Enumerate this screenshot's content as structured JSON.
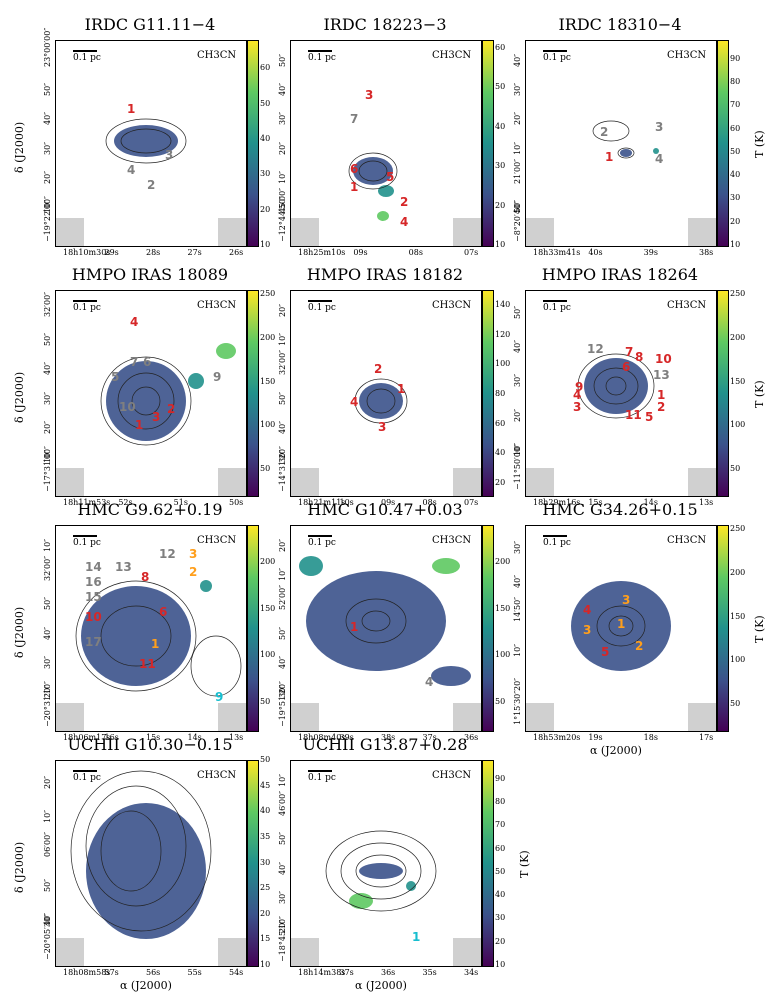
{
  "colors": {
    "red": "#d62728",
    "gray": "#7f7f7f",
    "orange": "#ff9f1c",
    "cyan": "#17becf",
    "green": "#2ca02c"
  },
  "colormap": [
    "#440154",
    "#3b528b",
    "#21918c",
    "#5ec962",
    "#fde725"
  ],
  "units": {
    "dec_label": "δ (J2000)",
    "ra_label": "α (J2000)",
    "cbar_label": "T (K)"
  },
  "panels": [
    {
      "title": "IRDC G11.11−4",
      "molecule": "CH3CN",
      "scalebar": "0.1 pc",
      "dec_ticks": [
        "−19°22′00″",
        "10″",
        "20″",
        "30″",
        "40″",
        "50″",
        "23°00′00″"
      ],
      "ra_ticks": [
        "18h10m30s",
        "29s",
        "28s",
        "27s",
        "26s"
      ],
      "cbar_ticks": [
        "10",
        "20",
        "30",
        "40",
        "50",
        "60"
      ],
      "cbar_range": [
        10,
        68
      ],
      "labels": [
        {
          "t": "1",
          "c": "red"
        },
        {
          "t": "3",
          "c": "gray"
        },
        {
          "t": "4",
          "c": "gray"
        },
        {
          "t": "2",
          "c": "gray"
        }
      ]
    },
    {
      "title": "IRDC 18223−3",
      "molecule": "CH3CN",
      "scalebar": "0.1 pc",
      "dec_ticks": [
        "−12°44′50″",
        "45′00″",
        "10″",
        "20″",
        "30″",
        "40″",
        "50″"
      ],
      "ra_ticks": [
        "18h25m10s",
        "09s",
        "08s",
        "07s"
      ],
      "cbar_ticks": [
        "10",
        "20",
        "30",
        "40",
        "50",
        "60"
      ],
      "cbar_range": [
        10,
        62
      ],
      "labels": [
        {
          "t": "3",
          "c": "red"
        },
        {
          "t": "7",
          "c": "gray"
        },
        {
          "t": "6",
          "c": "red"
        },
        {
          "t": "5",
          "c": "red"
        },
        {
          "t": "1",
          "c": "red"
        },
        {
          "t": "2",
          "c": "red"
        },
        {
          "t": "4",
          "c": "red"
        }
      ]
    },
    {
      "title": "IRDC 18310−4",
      "molecule": "CH3CN",
      "scalebar": "0.1 pc",
      "dec_ticks": [
        "−8°20′40″",
        "50″",
        "21′00″",
        "10″",
        "20″",
        "30″",
        "40″"
      ],
      "ra_ticks": [
        "18h33m41s",
        "40s",
        "39s",
        "38s"
      ],
      "cbar_ticks": [
        "10",
        "20",
        "30",
        "40",
        "50",
        "60",
        "70",
        "80",
        "90"
      ],
      "cbar_range": [
        10,
        98
      ],
      "labels": [
        {
          "t": "2",
          "c": "gray"
        },
        {
          "t": "3",
          "c": "gray"
        },
        {
          "t": "1",
          "c": "red"
        },
        {
          "t": "4",
          "c": "gray"
        }
      ]
    },
    {
      "title": "HMPO IRAS 18089",
      "molecule": "CH3CN",
      "scalebar": "0.1 pc",
      "dec_ticks": [
        "−17°31′00″",
        "10″",
        "20″",
        "30″",
        "40″",
        "50″",
        "32′00″"
      ],
      "ra_ticks": [
        "18h11m53s",
        "52s",
        "51s",
        "50s"
      ],
      "cbar_ticks": [
        "50",
        "100",
        "150",
        "200",
        "250"
      ],
      "cbar_range": [
        20,
        255
      ],
      "labels": [
        {
          "t": "4",
          "c": "red"
        },
        {
          "t": "7",
          "c": "gray"
        },
        {
          "t": "6",
          "c": "gray"
        },
        {
          "t": "5",
          "c": "gray"
        },
        {
          "t": "9",
          "c": "gray"
        },
        {
          "t": "10",
          "c": "gray"
        },
        {
          "t": "3",
          "c": "red"
        },
        {
          "t": "2",
          "c": "red"
        },
        {
          "t": "1",
          "c": "red"
        }
      ]
    },
    {
      "title": "HMPO IRAS 18182",
      "molecule": "CH3CN",
      "scalebar": "0.1 pc",
      "dec_ticks": [
        "−14°31′20″",
        "30″",
        "40″",
        "50″",
        "32′00″",
        "10″",
        "20″"
      ],
      "ra_ticks": [
        "18h21m11s",
        "10s",
        "09s",
        "08s",
        "07s"
      ],
      "cbar_ticks": [
        "20",
        "40",
        "60",
        "80",
        "100",
        "120",
        "140"
      ],
      "cbar_range": [
        12,
        150
      ],
      "labels": [
        {
          "t": "2",
          "c": "red"
        },
        {
          "t": "1",
          "c": "red"
        },
        {
          "t": "4",
          "c": "red"
        },
        {
          "t": "3",
          "c": "red"
        }
      ]
    },
    {
      "title": "HMPO IRAS 18264",
      "molecule": "CH3CN",
      "scalebar": "0.1 pc",
      "dec_ticks": [
        "−11°50′00″",
        "10″",
        "20″",
        "30″",
        "40″",
        "50″"
      ],
      "ra_ticks": [
        "18h29m16s",
        "15s",
        "14s",
        "13s"
      ],
      "cbar_ticks": [
        "50",
        "100",
        "150",
        "200",
        "250"
      ],
      "cbar_range": [
        20,
        255
      ],
      "labels": [
        {
          "t": "12",
          "c": "gray"
        },
        {
          "t": "7",
          "c": "red"
        },
        {
          "t": "8",
          "c": "red"
        },
        {
          "t": "10",
          "c": "red"
        },
        {
          "t": "6",
          "c": "red"
        },
        {
          "t": "13",
          "c": "gray"
        },
        {
          "t": "9",
          "c": "red"
        },
        {
          "t": "4",
          "c": "red"
        },
        {
          "t": "1",
          "c": "red"
        },
        {
          "t": "3",
          "c": "red"
        },
        {
          "t": "2",
          "c": "red"
        },
        {
          "t": "11",
          "c": "red"
        },
        {
          "t": "5",
          "c": "red"
        }
      ]
    },
    {
      "title": "HMC G9.62+0.19",
      "molecule": "CH3CN",
      "scalebar": "0.1 pc",
      "dec_ticks": [
        "−20°31′10″",
        "20″",
        "30″",
        "40″",
        "50″",
        "32′00″",
        "10″"
      ],
      "ra_ticks": [
        "18h06m17s",
        "16s",
        "15s",
        "14s",
        "13s"
      ],
      "cbar_ticks": [
        "50",
        "100",
        "150",
        "200"
      ],
      "cbar_range": [
        20,
        240
      ],
      "labels": [
        {
          "t": "12",
          "c": "gray"
        },
        {
          "t": "3",
          "c": "orange"
        },
        {
          "t": "2",
          "c": "orange"
        },
        {
          "t": "14",
          "c": "gray"
        },
        {
          "t": "13",
          "c": "gray"
        },
        {
          "t": "8",
          "c": "red"
        },
        {
          "t": "16",
          "c": "gray"
        },
        {
          "t": "15",
          "c": "gray"
        },
        {
          "t": "10",
          "c": "red"
        },
        {
          "t": "6",
          "c": "red"
        },
        {
          "t": "17",
          "c": "gray"
        },
        {
          "t": "1",
          "c": "orange"
        },
        {
          "t": "11",
          "c": "red"
        },
        {
          "t": "9",
          "c": "cyan"
        }
      ]
    },
    {
      "title": "HMC G10.47+0.03",
      "molecule": "CH3CN",
      "scalebar": "0.1 pc",
      "dec_ticks": [
        "−19°51′20″",
        "30″",
        "40″",
        "50″",
        "52′00″",
        "10″",
        "20″"
      ],
      "ra_ticks": [
        "18h08m40s",
        "39s",
        "38s",
        "37s",
        "36s"
      ],
      "cbar_ticks": [
        "50",
        "100",
        "150",
        "200"
      ],
      "cbar_range": [
        20,
        240
      ],
      "labels": [
        {
          "t": "1",
          "c": "red"
        },
        {
          "t": "4",
          "c": "gray"
        }
      ]
    },
    {
      "title": "HMC G34.26+0.15",
      "molecule": "CH3CN",
      "scalebar": "0.1 pc",
      "dec_ticks": [
        "1°15′30″",
        "20″",
        "10″",
        "14′50″",
        "40″",
        "30″"
      ],
      "ra_ticks": [
        "18h53m20s",
        "19s",
        "18s",
        "17s"
      ],
      "cbar_ticks": [
        "50",
        "100",
        "150",
        "200",
        "250"
      ],
      "cbar_range": [
        20,
        255
      ],
      "labels": [
        {
          "t": "3",
          "c": "orange"
        },
        {
          "t": "4",
          "c": "red"
        },
        {
          "t": "1",
          "c": "orange"
        },
        {
          "t": "3",
          "c": "orange"
        },
        {
          "t": "5",
          "c": "red"
        },
        {
          "t": "2",
          "c": "orange"
        }
      ]
    },
    {
      "title": "UCHII G10.30−0.15",
      "molecule": "CH3CN",
      "scalebar": "0.1 pc",
      "dec_ticks": [
        "−20°05′30″",
        "40″",
        "50″",
        "06′00″",
        "10″",
        "20″"
      ],
      "ra_ticks": [
        "18h08m58s",
        "57s",
        "56s",
        "55s",
        "54s"
      ],
      "cbar_ticks": [
        "10",
        "15",
        "20",
        "25",
        "30",
        "35",
        "40",
        "45",
        "50"
      ],
      "cbar_range": [
        10,
        50
      ],
      "labels": []
    },
    {
      "title": "UCHII G13.87+0.28",
      "molecule": "CH3CN",
      "scalebar": "0.1 pc",
      "dec_ticks": [
        "−18°45′10″",
        "20″",
        "30″",
        "40″",
        "50″",
        "46′00″",
        "10″"
      ],
      "ra_ticks": [
        "18h14m38s",
        "37s",
        "36s",
        "35s",
        "34s"
      ],
      "cbar_ticks": [
        "10",
        "20",
        "30",
        "40",
        "50",
        "60",
        "70",
        "80",
        "90"
      ],
      "cbar_range": [
        10,
        98
      ],
      "labels": [
        {
          "t": "1",
          "c": "cyan"
        }
      ]
    }
  ]
}
